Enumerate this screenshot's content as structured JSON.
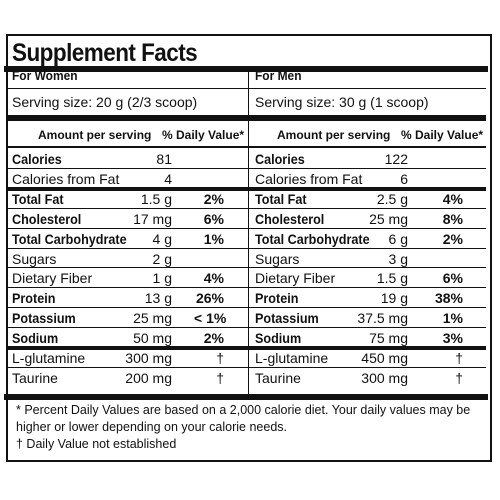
{
  "title": "Supplement Facts",
  "columns": [
    {
      "header": "For Women",
      "serving": "Serving size: 20 g (2/3 scoop)",
      "amount_label": "Amount per serving",
      "dv_label": "% Daily Value*",
      "rows": [
        {
          "name": "Calories",
          "value": "81",
          "dv": "",
          "bold": true
        },
        {
          "name": "Calories from Fat",
          "value": "4",
          "dv": "",
          "bold": false
        },
        {
          "name": "Total Fat",
          "value": "1.5 g",
          "dv": "2%",
          "bold": true
        },
        {
          "name": "Cholesterol",
          "value": "17 mg",
          "dv": "6%",
          "bold": true
        },
        {
          "name": "Total Carbohydrate",
          "value": "4 g",
          "dv": "1%",
          "bold": true
        },
        {
          "name": "Sugars",
          "value": "2 g",
          "dv": "",
          "bold": false
        },
        {
          "name": "Dietary Fiber",
          "value": "1 g",
          "dv": "4%",
          "bold": false
        },
        {
          "name": "Protein",
          "value": "13 g",
          "dv": "26%",
          "bold": true
        },
        {
          "name": "Potassium",
          "value": "25 mg",
          "dv": "< 1%",
          "bold": true
        },
        {
          "name": "Sodium",
          "value": "50 mg",
          "dv": "2%",
          "bold": true
        },
        {
          "name": "L-glutamine",
          "value": "300 mg",
          "dv": "†",
          "bold": false
        },
        {
          "name": "Taurine",
          "value": "200 mg",
          "dv": "†",
          "bold": false
        }
      ]
    },
    {
      "header": "For Men",
      "serving": "Serving size: 30 g (1 scoop)",
      "amount_label": "Amount per serving",
      "dv_label": "% Daily Value*",
      "rows": [
        {
          "name": "Calories",
          "value": "122",
          "dv": "",
          "bold": true
        },
        {
          "name": "Calories from Fat",
          "value": "6",
          "dv": "",
          "bold": false
        },
        {
          "name": "Total Fat",
          "value": "2.5 g",
          "dv": "4%",
          "bold": true
        },
        {
          "name": "Cholesterol",
          "value": "25 mg",
          "dv": "8%",
          "bold": true
        },
        {
          "name": "Total Carbohydrate",
          "value": "6 g",
          "dv": "2%",
          "bold": true
        },
        {
          "name": "Sugars",
          "value": "3 g",
          "dv": "",
          "bold": false
        },
        {
          "name": "Dietary Fiber",
          "value": "1.5 g",
          "dv": "6%",
          "bold": false
        },
        {
          "name": "Protein",
          "value": "19 g",
          "dv": "38%",
          "bold": true
        },
        {
          "name": "Potassium",
          "value": "37.5 mg",
          "dv": "1%",
          "bold": true
        },
        {
          "name": "Sodium",
          "value": "75 mg",
          "dv": "3%",
          "bold": true
        },
        {
          "name": "L-glutamine",
          "value": "450 mg",
          "dv": "†",
          "bold": false
        },
        {
          "name": "Taurine",
          "value": "300 mg",
          "dv": "†",
          "bold": false
        }
      ]
    }
  ],
  "footnote_1": "* Percent Daily Values are based on a 2,000 calorie diet. Your daily values may be higher or lower depending on your calorie needs.",
  "footnote_2": "† Daily Value not established"
}
